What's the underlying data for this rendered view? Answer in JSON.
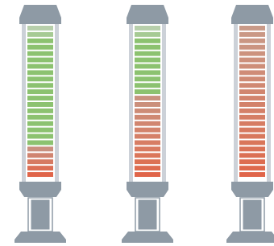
{
  "meters": [
    {
      "colors": [
        "#b7cfab",
        "#a6ca94",
        "#8cc270",
        "#8cc270",
        "#8cc270",
        "#8cc270",
        "#8cc270",
        "#8cc270",
        "#8cc270",
        "#8cc270",
        "#8cc270",
        "#8cc270",
        "#8cc270",
        "#8cc270",
        "#8cc270",
        "#8cc270",
        "#8cc270",
        "#8cc270",
        "#8cc270",
        "#c9907f",
        "#d08470",
        "#d67a62",
        "#dc6f55",
        "#e0654a"
      ]
    },
    {
      "colors": [
        "#b7cfab",
        "#a6ca94",
        "#8cc270",
        "#8cc270",
        "#8cc270",
        "#8cc270",
        "#8cc270",
        "#8cc270",
        "#8cc270",
        "#8cc270",
        "#8cc270",
        "#c9927f",
        "#cb8f7b",
        "#cd8c77",
        "#cf8973",
        "#d18670",
        "#d3836c",
        "#d58068",
        "#d77d64",
        "#d97a60",
        "#db765a",
        "#dc7254",
        "#de6c4f",
        "#e0654a"
      ]
    },
    {
      "colors": [
        "#c99a88",
        "#ca9885",
        "#ca9683",
        "#cb9481",
        "#cc927e",
        "#cd907c",
        "#ce8e79",
        "#cf8c77",
        "#cf8a74",
        "#d08872",
        "#d1866f",
        "#d2846d",
        "#d3826a",
        "#d48068",
        "#d57e65",
        "#d67c63",
        "#d77a60",
        "#d8785d",
        "#d9765a",
        "#da7357",
        "#db7054",
        "#dd6d51",
        "#de694d",
        "#e0654a"
      ]
    }
  ]
}
